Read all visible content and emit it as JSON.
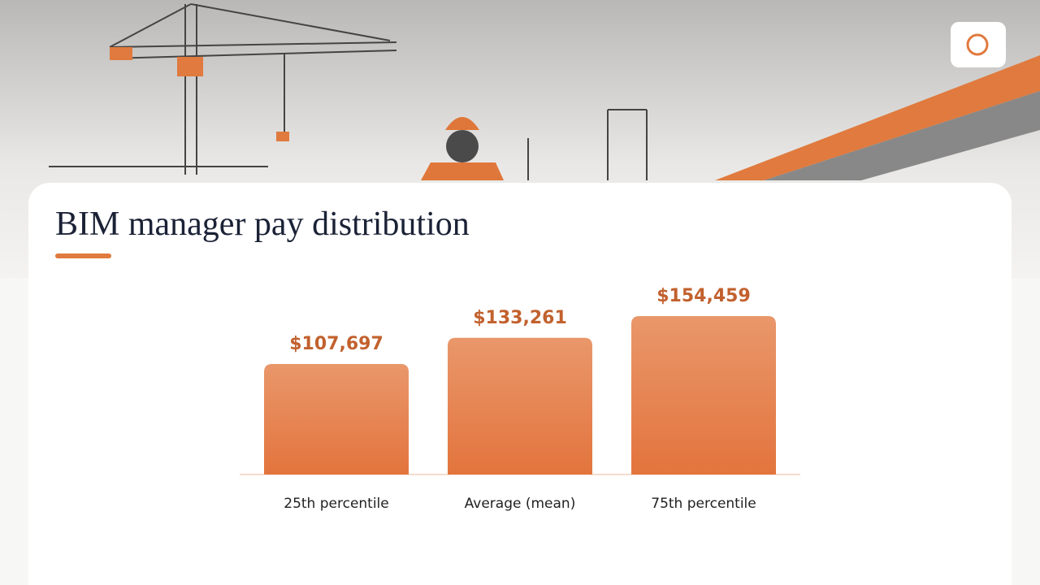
{
  "chart_data": {
    "type": "bar",
    "title": "BIM manager pay distribution",
    "categories": [
      "25th percentile",
      "Average (mean)",
      "75th percentile"
    ],
    "values": [
      107697,
      133261,
      154459
    ],
    "value_labels": [
      "$107,697",
      "$133,261",
      "$154,459"
    ],
    "color": "#e57a43"
  }
}
